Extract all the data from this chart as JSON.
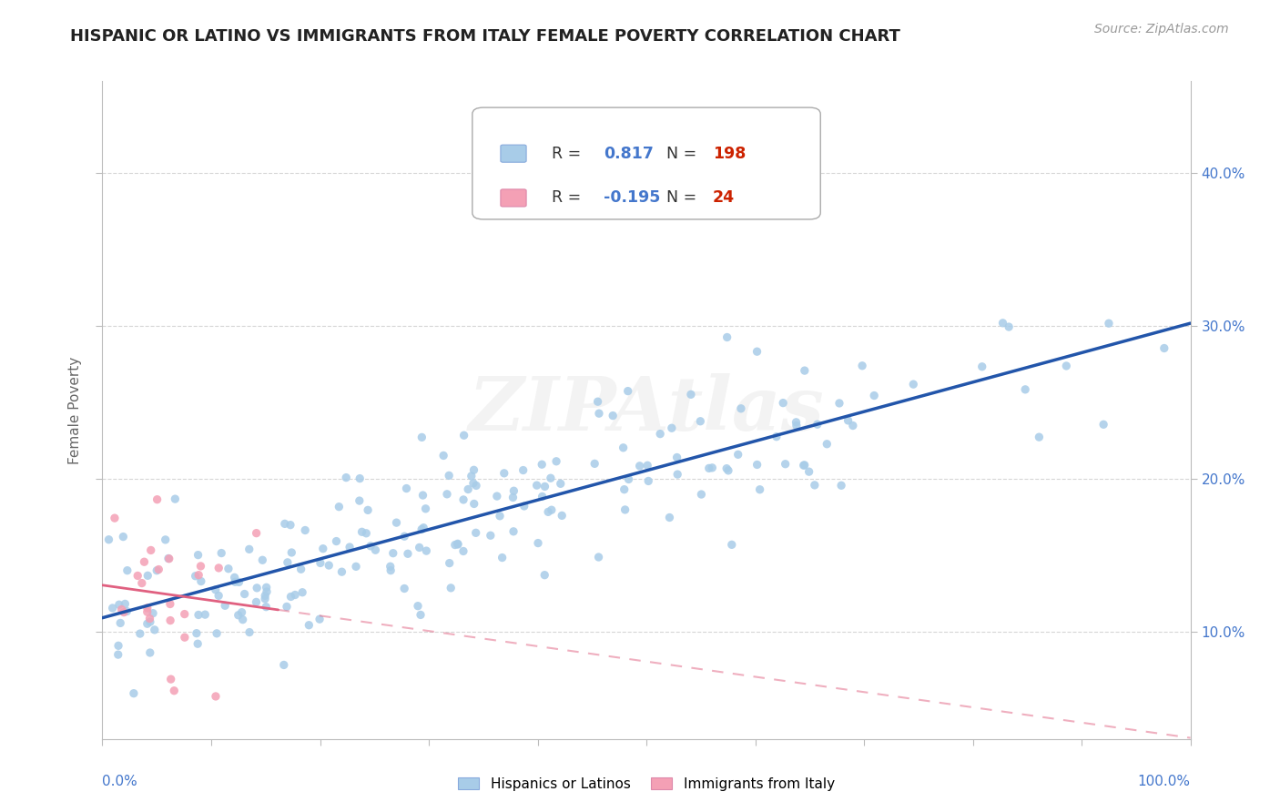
{
  "title": "HISPANIC OR LATINO VS IMMIGRANTS FROM ITALY FEMALE POVERTY CORRELATION CHART",
  "source": "Source: ZipAtlas.com",
  "ylabel": "Female Poverty",
  "watermark": "ZIPAtlas",
  "series1": {
    "label": "Hispanics or Latinos",
    "R": 0.817,
    "N": 198,
    "color": "#a8cce8",
    "line_color": "#2255aa",
    "alpha": 0.85
  },
  "series2": {
    "label": "Immigrants from Italy",
    "R": -0.195,
    "N": 24,
    "color": "#f4a0b5",
    "line_color": "#e06080",
    "alpha": 0.85
  },
  "xlim": [
    0,
    1.0
  ],
  "ylim": [
    0.03,
    0.46
  ],
  "yticks": [
    0.1,
    0.2,
    0.3,
    0.4
  ],
  "ytick_labels": [
    "10.0%",
    "20.0%",
    "30.0%",
    "40.0%"
  ],
  "background_color": "#ffffff",
  "grid_color": "#cccccc",
  "legend_R_color": "#4477cc",
  "legend_N_color": "#cc2200",
  "title_fontsize": 13,
  "seed": 7
}
